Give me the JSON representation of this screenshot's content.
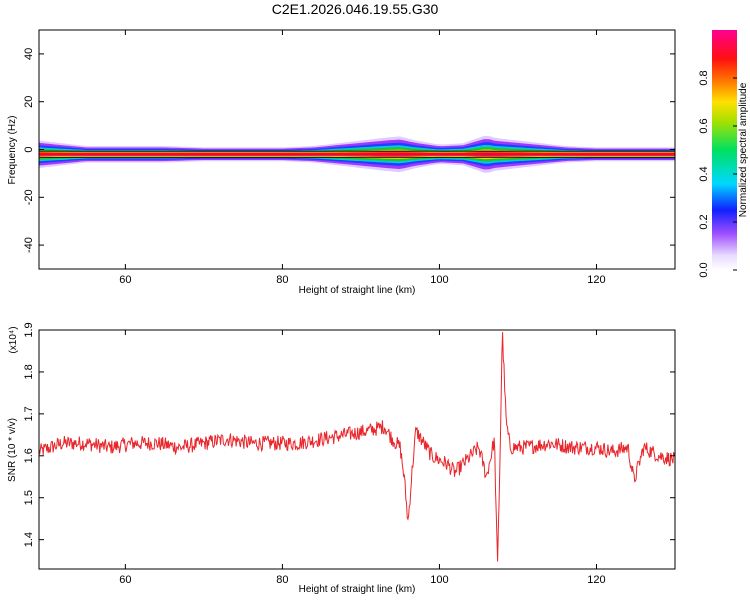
{
  "title": "C2E1.2026.046.19.55.G30",
  "colors": {
    "background": "#ffffff",
    "axis": "#000000",
    "snr_line": "#e8262b",
    "spectrum_core": "#e6004c",
    "spectrum_inner": "#ff4500",
    "spectrum_mid": "#ffd700",
    "spectrum_green": "#22c32a",
    "spectrum_cyan": "#00d0e0",
    "spectrum_blue": "#1e3cff",
    "spectrum_violet": "#9b30ff",
    "spectrum_halo": "#dcc8ff"
  },
  "chart_data": [
    {
      "type": "heatmap",
      "title": "C2E1.2026.046.19.55.G30",
      "xlabel": "Height of straight line (km)",
      "ylabel": "Frequency (Hz)",
      "xlim": [
        49,
        130
      ],
      "ylim": [
        -50,
        50
      ],
      "x_ticks": [
        60,
        80,
        100,
        120
      ],
      "y_ticks": [
        -40,
        -20,
        0,
        20,
        40
      ],
      "peak_frequency_hz": -2,
      "spectral_width_profile": {
        "x": [
          49,
          52,
          55,
          60,
          65,
          70,
          75,
          80,
          84,
          87,
          90,
          93,
          95,
          97,
          100,
          103,
          105,
          106,
          107,
          110,
          113,
          116,
          120,
          125,
          130
        ],
        "half_width_hz": [
          5,
          4,
          3,
          3,
          3,
          2.5,
          2.5,
          2.5,
          3,
          4,
          5,
          6,
          6.5,
          5,
          3.5,
          4,
          6,
          7,
          6,
          5,
          4,
          3,
          2.5,
          2.5,
          2.5
        ]
      },
      "colorbar": {
        "label": "Normalized spectral amplitude",
        "range": [
          0,
          1
        ],
        "ticks": [
          "0.0",
          "0.2",
          "0.4",
          "0.6",
          "0.8"
        ],
        "tick_values": [
          0,
          0.2,
          0.4,
          0.6,
          0.8
        ]
      }
    },
    {
      "type": "line",
      "xlabel": "Height of straight line (km)",
      "ylabel": "SNR (10 * v/v)",
      "y_multiplier": "(x10⁴)",
      "xlim": [
        49,
        130
      ],
      "ylim": [
        1.33,
        1.9
      ],
      "x_ticks": [
        60,
        80,
        100,
        120
      ],
      "y_ticks": [
        1.4,
        1.5,
        1.6,
        1.7,
        1.8,
        1.9
      ],
      "series": [
        {
          "x": [
            49,
            52,
            55,
            58,
            61,
            64,
            67,
            70,
            73,
            76,
            79,
            82,
            85,
            88,
            91,
            93,
            94,
            95,
            95.5,
            96,
            96.5,
            97,
            98,
            99,
            100,
            101,
            102,
            103,
            104,
            105,
            106,
            107,
            107.4,
            107.7,
            108,
            108.5,
            109,
            111,
            114,
            117,
            120,
            122,
            124,
            124.8,
            126,
            128,
            130
          ],
          "values": [
            1.61,
            1.63,
            1.63,
            1.62,
            1.63,
            1.63,
            1.62,
            1.63,
            1.64,
            1.63,
            1.63,
            1.63,
            1.64,
            1.65,
            1.66,
            1.67,
            1.64,
            1.62,
            1.55,
            1.44,
            1.56,
            1.66,
            1.63,
            1.6,
            1.59,
            1.58,
            1.56,
            1.58,
            1.6,
            1.62,
            1.55,
            1.64,
            1.33,
            1.58,
            1.9,
            1.68,
            1.62,
            1.62,
            1.63,
            1.62,
            1.62,
            1.61,
            1.62,
            1.54,
            1.62,
            1.6,
            1.59
          ],
          "noise_amplitude": 0.018
        }
      ]
    }
  ]
}
